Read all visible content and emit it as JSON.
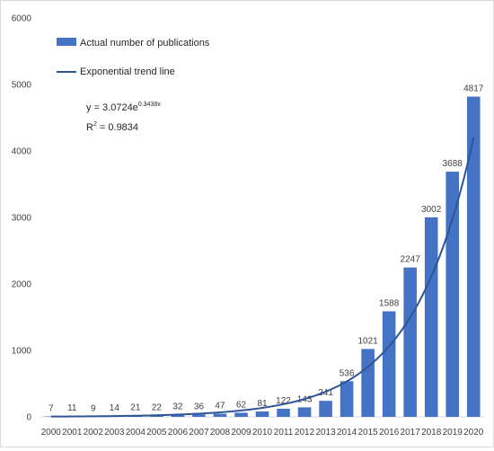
{
  "chart_data": {
    "type": "bar",
    "categories": [
      "2000",
      "2001",
      "2002",
      "2003",
      "2004",
      "2005",
      "2006",
      "2007",
      "2008",
      "2009",
      "2010",
      "2011",
      "2012",
      "2013",
      "2014",
      "2015",
      "2016",
      "2017",
      "2018",
      "2019",
      "2020"
    ],
    "series": [
      {
        "name": "Actual number of publications",
        "values": [
          7,
          11,
          9,
          14,
          21,
          22,
          32,
          36,
          47,
          62,
          81,
          122,
          143,
          241,
          536,
          1021,
          1588,
          2247,
          3002,
          3688,
          4817
        ]
      }
    ],
    "trend": {
      "name": "Exponential trend line",
      "a": 3.0724,
      "b": 0.3438
    },
    "equation": "y = 3.0724e",
    "equation_exp": "0.3438x",
    "r2_prefix": "R",
    "r2_sup": "2",
    "r2_value": " = 0.9834",
    "ylim": [
      0,
      6000
    ],
    "yticks": [
      0,
      1000,
      2000,
      3000,
      4000,
      5000,
      6000
    ],
    "grid": false,
    "legend_position": "top-left",
    "colors": {
      "bar": "#4472C4",
      "trend": "#2F5597"
    }
  }
}
